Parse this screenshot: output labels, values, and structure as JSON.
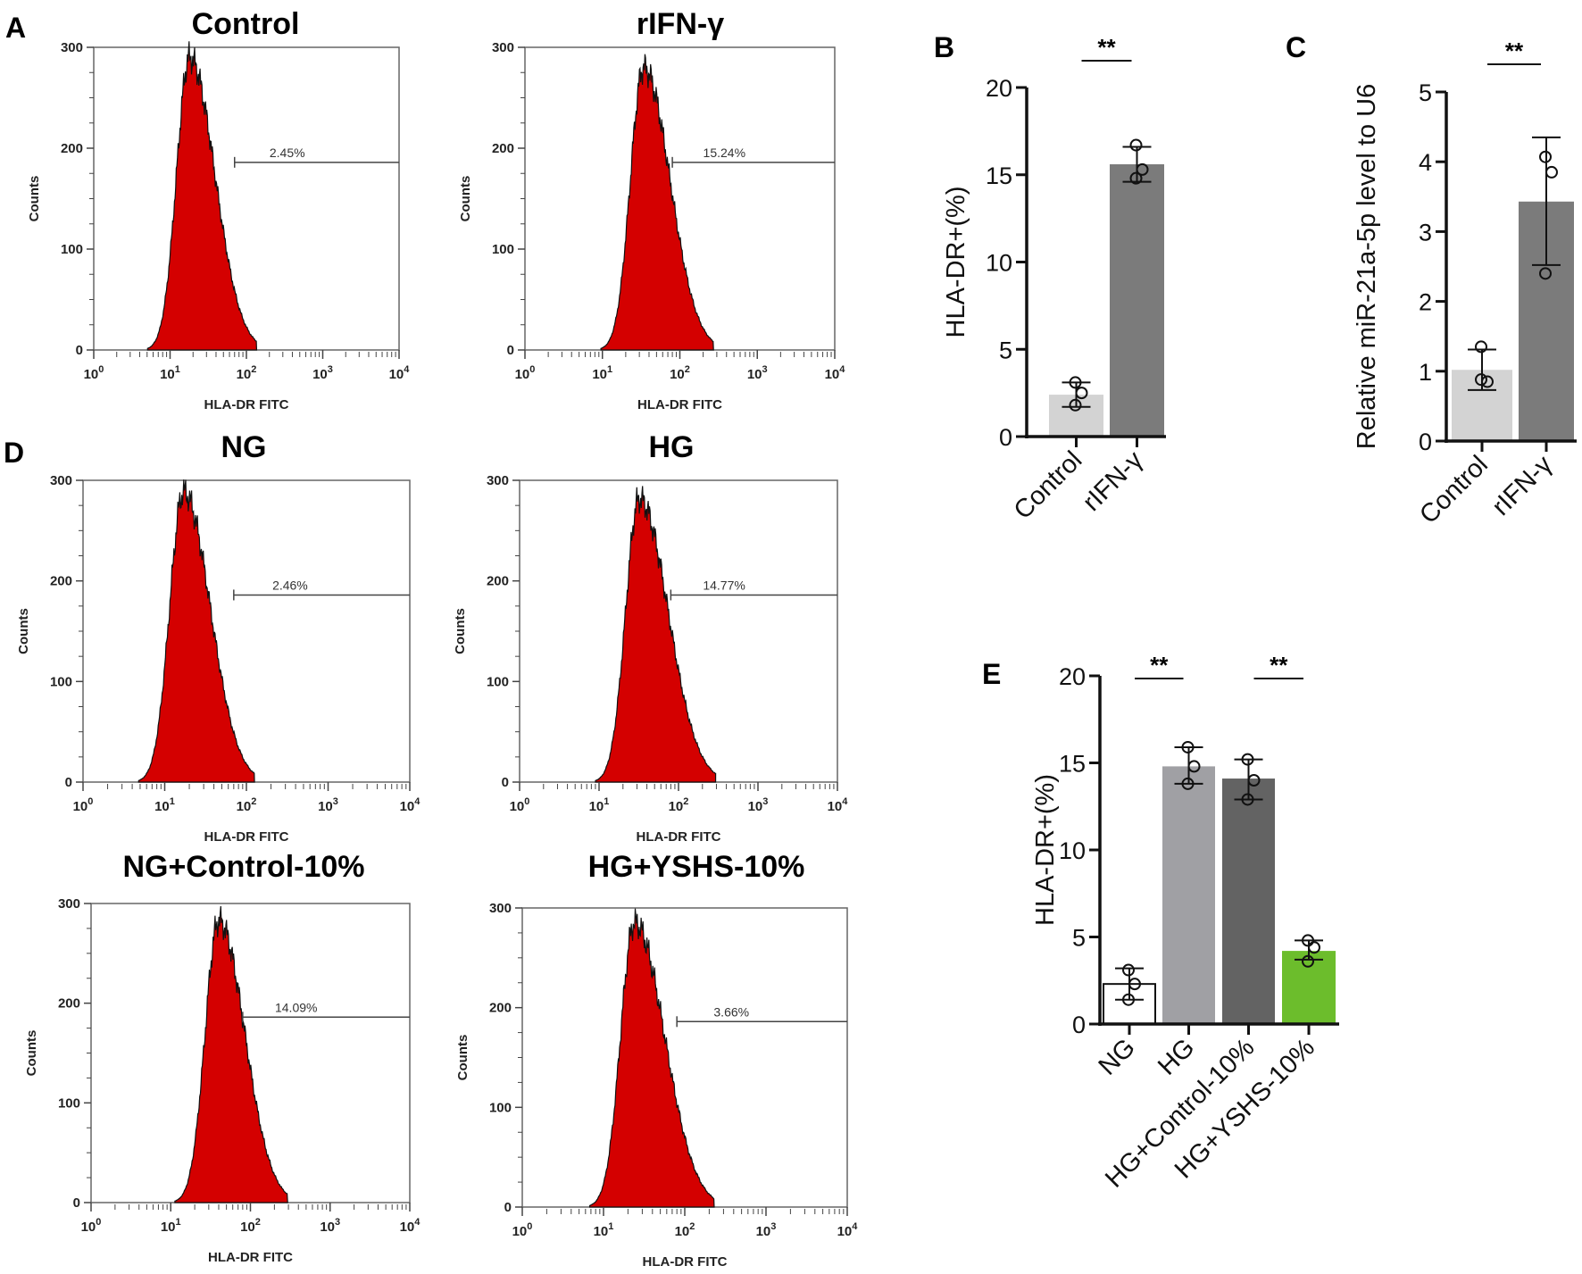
{
  "panel_letters": {
    "A": "A",
    "B": "B",
    "C": "C",
    "D": "D",
    "E": "E"
  },
  "chart_data": [
    {
      "id": "A1",
      "type": "area",
      "title": "Control",
      "xlabel": "HLA-DR FITC",
      "ylabel": "Counts",
      "x_scale": "log",
      "x_tick_base": "10",
      "x_tick_exponents": [
        "0",
        "1",
        "2",
        "3",
        "4"
      ],
      "y_ticks": [
        "0",
        "100",
        "200",
        "300"
      ],
      "ylim": [
        0,
        300
      ],
      "peak_x": 18,
      "peak_count": 290,
      "upper_x": 130,
      "gate_start_x": 70,
      "gate_label": "2.45%",
      "color": "#d40000"
    },
    {
      "id": "A2",
      "type": "area",
      "title": "rIFN-γ",
      "xlabel": "HLA-DR FITC",
      "ylabel": "Counts",
      "x_scale": "log",
      "x_tick_base": "10",
      "x_tick_exponents": [
        "0",
        "1",
        "2",
        "3",
        "4"
      ],
      "y_ticks": [
        "0",
        "100",
        "200",
        "300"
      ],
      "ylim": [
        0,
        300
      ],
      "peak_x": 34,
      "peak_count": 280,
      "upper_x": 260,
      "gate_start_x": 80,
      "gate_label": "15.24%",
      "color": "#d40000"
    },
    {
      "id": "D1",
      "type": "area",
      "title": "NG",
      "xlabel": "HLA-DR FITC",
      "ylabel": "Counts",
      "x_scale": "log",
      "x_tick_base": "10",
      "x_tick_exponents": [
        "0",
        "1",
        "2",
        "3",
        "4"
      ],
      "y_ticks": [
        "0",
        "100",
        "200",
        "300"
      ],
      "ylim": [
        0,
        300
      ],
      "peak_x": 17,
      "peak_count": 288,
      "upper_x": 120,
      "gate_start_x": 70,
      "gate_label": "2.46%",
      "color": "#d40000"
    },
    {
      "id": "D2",
      "type": "area",
      "title": "HG",
      "xlabel": "HLA-DR FITC",
      "ylabel": "Counts",
      "x_scale": "log",
      "x_tick_base": "10",
      "x_tick_exponents": [
        "0",
        "1",
        "2",
        "3",
        "4"
      ],
      "y_ticks": [
        "0",
        "100",
        "200",
        "300"
      ],
      "ylim": [
        0,
        300
      ],
      "peak_x": 32,
      "peak_count": 282,
      "upper_x": 280,
      "gate_start_x": 80,
      "gate_label": "14.77%",
      "color": "#d40000"
    },
    {
      "id": "D3",
      "type": "area",
      "title": "NG+Control-10%",
      "xlabel": "HLA-DR FITC",
      "ylabel": "Counts",
      "x_scale": "log",
      "x_tick_base": "10",
      "x_tick_exponents": [
        "0",
        "1",
        "2",
        "3",
        "4"
      ],
      "y_ticks": [
        "0",
        "100",
        "200",
        "300"
      ],
      "ylim": [
        0,
        300
      ],
      "peak_x": 40,
      "peak_count": 283,
      "upper_x": 280,
      "gate_start_x": 80,
      "gate_label": "14.09%",
      "color": "#d40000"
    },
    {
      "id": "D4",
      "type": "area",
      "title": "HG+YSHS-10%",
      "xlabel": "HLA-DR FITC",
      "ylabel": "Counts",
      "x_scale": "log",
      "x_tick_base": "10",
      "x_tick_exponents": [
        "0",
        "1",
        "2",
        "3",
        "4"
      ],
      "y_ticks": [
        "0",
        "100",
        "200",
        "300"
      ],
      "ylim": [
        0,
        300
      ],
      "peak_x": 24,
      "peak_count": 285,
      "upper_x": 220,
      "gate_start_x": 80,
      "gate_label": "3.66%",
      "color": "#d40000"
    },
    {
      "id": "B",
      "type": "bar",
      "ylabel": "HLA-DR+(%)",
      "ylim": [
        0,
        20
      ],
      "y_ticks": [
        "0",
        "5",
        "10",
        "15",
        "20"
      ],
      "categories": [
        "Control",
        "rIFN-γ"
      ],
      "values": [
        2.4,
        15.6
      ],
      "error": [
        [
          1.7,
          3.1
        ],
        [
          14.6,
          16.6
        ]
      ],
      "points": [
        [
          1.8,
          2.5,
          3.1
        ],
        [
          16.7,
          15.3,
          14.8
        ]
      ],
      "colors": [
        "#d3d3d3",
        "#7b7b7b"
      ],
      "significance": [
        {
          "between": [
            0,
            1
          ],
          "label": "**"
        }
      ]
    },
    {
      "id": "C",
      "type": "bar",
      "ylabel": "Relative miR-21a-5p level to U6",
      "ylim": [
        0,
        5
      ],
      "y_ticks": [
        "0",
        "1",
        "2",
        "3",
        "4",
        "5"
      ],
      "categories": [
        "Control",
        "rIFN-γ"
      ],
      "values": [
        1.02,
        3.43
      ],
      "error": [
        [
          0.73,
          1.31
        ],
        [
          2.52,
          4.35
        ]
      ],
      "points": [
        [
          1.35,
          0.85,
          0.88
        ],
        [
          4.07,
          3.85,
          2.4
        ]
      ],
      "colors": [
        "#d3d3d3",
        "#7b7b7b"
      ],
      "significance": [
        {
          "between": [
            0,
            1
          ],
          "label": "**"
        }
      ]
    },
    {
      "id": "E",
      "type": "bar",
      "ylabel": "HLA-DR+(%)",
      "ylim": [
        0,
        20
      ],
      "y_ticks": [
        "0",
        "5",
        "10",
        "15",
        "20"
      ],
      "categories": [
        "NG",
        "HG",
        "HG+Control-10%",
        "HG+YSHS-10%"
      ],
      "values": [
        2.3,
        14.8,
        14.1,
        4.2
      ],
      "error": [
        [
          1.4,
          3.2
        ],
        [
          13.8,
          15.9
        ],
        [
          12.9,
          15.2
        ],
        [
          3.7,
          4.8
        ]
      ],
      "points": [
        [
          3.1,
          2.3,
          1.4
        ],
        [
          15.9,
          14.8,
          13.8
        ],
        [
          15.2,
          14.0,
          12.9
        ],
        [
          4.8,
          4.4,
          3.6
        ]
      ],
      "colors": [
        "#ffffff",
        "#a0a0a4",
        "#636363",
        "#6cbd2c"
      ],
      "significance": [
        {
          "between": [
            0,
            1
          ],
          "label": "**"
        },
        {
          "between": [
            2,
            3
          ],
          "label": "**"
        }
      ]
    }
  ]
}
